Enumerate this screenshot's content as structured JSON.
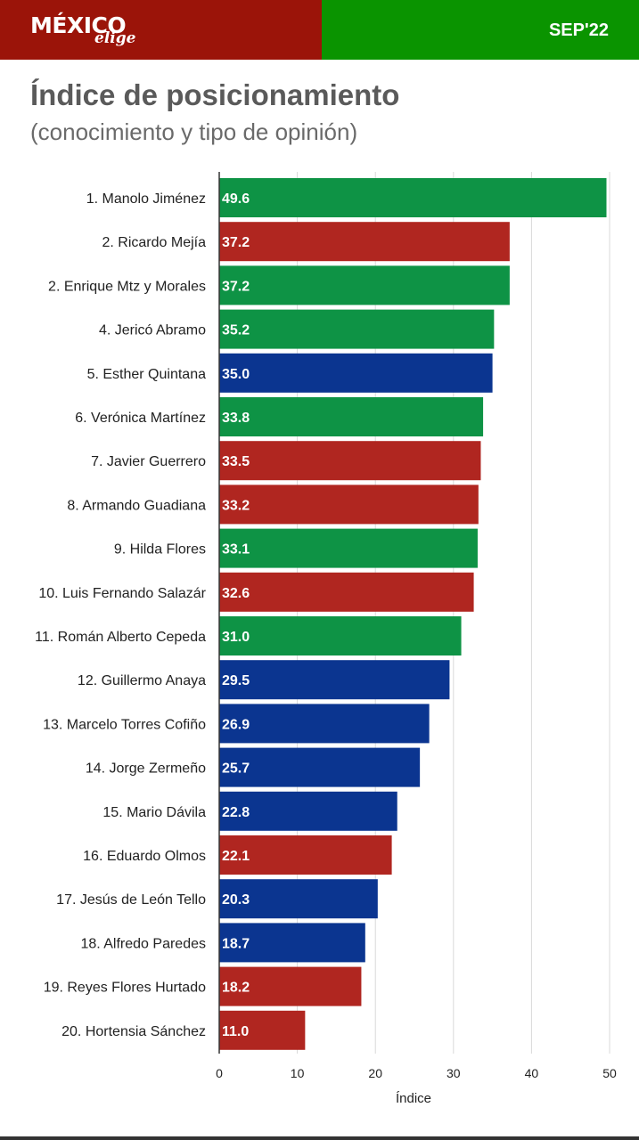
{
  "header": {
    "brand_main": "MÉXICO",
    "brand_sub": "elige",
    "date": "SEP'22",
    "colors": {
      "left": "#9b1409",
      "right": "#0a9400"
    }
  },
  "title": "Índice de posicionamiento",
  "subtitle": "(conocimiento y tipo de opinión)",
  "chart_data": {
    "type": "bar",
    "orientation": "horizontal",
    "xlabel": "Índice",
    "ylabel": "",
    "xlim": [
      0,
      50
    ],
    "xticks": [
      0,
      10,
      20,
      30,
      40,
      50
    ],
    "grid": true,
    "colors": {
      "green": "#0e9345",
      "red": "#b02620",
      "blue": "#0b3590"
    },
    "categories": [
      "1. Manolo Jiménez",
      "2. Ricardo Mejía",
      "2. Enrique Mtz y Morales",
      "4. Jericó Abramo",
      "5. Esther Quintana",
      "6. Verónica Martínez",
      "7. Javier Guerrero",
      "8. Armando Guadiana",
      "9. Hilda Flores",
      "10. Luis Fernando Salazár",
      "11. Román Alberto Cepeda",
      "12. Guillermo Anaya",
      "13. Marcelo Torres Cofiño",
      "14. Jorge Zermeño",
      "15. Mario Dávila",
      "16. Eduardo Olmos",
      "17. Jesús de León Tello",
      "18. Alfredo Paredes",
      "19. Reyes Flores Hurtado",
      "20. Hortensia Sánchez"
    ],
    "values": [
      49.6,
      37.2,
      37.2,
      35.2,
      35.0,
      33.8,
      33.5,
      33.2,
      33.1,
      32.6,
      31.0,
      29.5,
      26.9,
      25.7,
      22.8,
      22.1,
      20.3,
      18.7,
      18.2,
      11.0
    ],
    "value_labels": [
      "49.6",
      "37.2",
      "37.2",
      "35.2",
      "35.0",
      "33.8",
      "33.5",
      "33.2",
      "33.1",
      "32.6",
      "31.0",
      "29.5",
      "26.9",
      "25.7",
      "22.8",
      "22.1",
      "20.3",
      "18.7",
      "18.2",
      "11.0"
    ],
    "bar_colors": [
      "green",
      "red",
      "green",
      "green",
      "blue",
      "green",
      "red",
      "red",
      "green",
      "red",
      "green",
      "blue",
      "blue",
      "blue",
      "blue",
      "red",
      "blue",
      "blue",
      "red",
      "red"
    ]
  }
}
